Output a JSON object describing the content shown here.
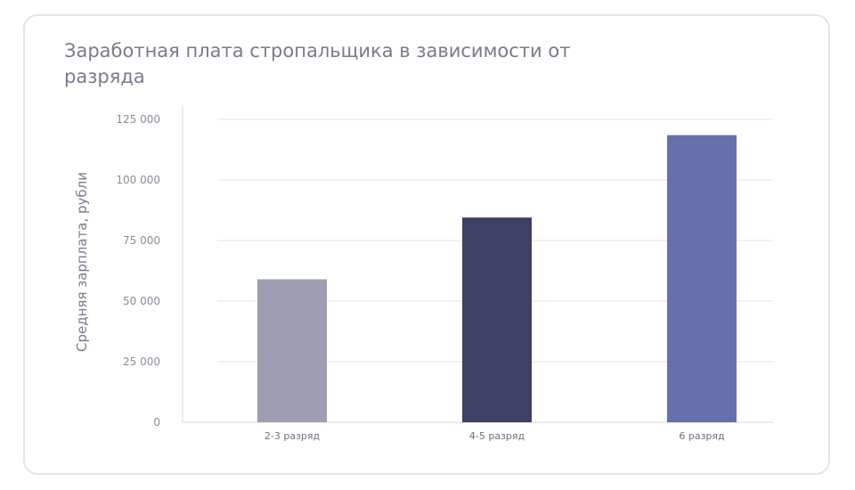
{
  "chart_data": {
    "type": "bar",
    "title": "Заработная плата стропальщика в зависимости от разряда",
    "ylabel": "Средняя зарплата, рубли",
    "xlabel": "",
    "categories": [
      "2-3 разряд",
      "4-5 разряд",
      "6 разряд"
    ],
    "values": [
      59000,
      84500,
      118500
    ],
    "colors": [
      "#9d9eb3",
      "#3e4065",
      "#6870ab"
    ],
    "ylim": [
      0,
      125000
    ],
    "yticks": [
      0,
      25000,
      50000,
      75000,
      100000,
      125000
    ],
    "ytick_labels": [
      "0",
      "25 000",
      "50 000",
      "75 000",
      "100 000",
      "125 000"
    ],
    "grid": true,
    "legend": "none"
  }
}
